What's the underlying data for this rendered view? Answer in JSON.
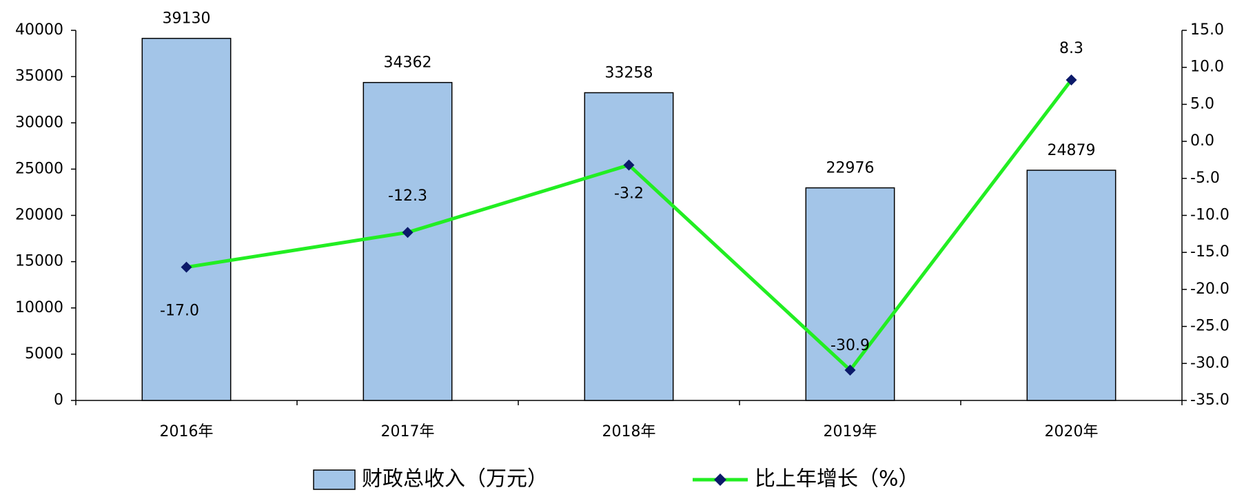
{
  "chart_data": {
    "type": "bar",
    "categories": [
      "2016年",
      "2017年",
      "2018年",
      "2019年",
      "2020年"
    ],
    "series": [
      {
        "name": "财政总收入（万元）",
        "type": "bar",
        "color": "#a3c5e8",
        "values": [
          39130,
          34362,
          33258,
          22976,
          24879
        ]
      },
      {
        "name": "比上年增长（%）",
        "type": "line",
        "axis": "y2",
        "color": "#22ee22",
        "marker_color": "#0c1a6a",
        "values": [
          -17.0,
          -12.3,
          -3.2,
          -30.9,
          8.3
        ],
        "value_labels": [
          "-17.0",
          "-12.3",
          "-3.2",
          "-30.9",
          "8.3"
        ]
      }
    ],
    "ylim": [
      0,
      40000
    ],
    "yticks": [
      0,
      5000,
      10000,
      15000,
      20000,
      25000,
      30000,
      35000,
      40000
    ],
    "y2lim": [
      -35,
      15
    ],
    "y2ticks": [
      {
        "value": -35,
        "label": "-35.0"
      },
      {
        "value": -30,
        "label": "-30.0"
      },
      {
        "value": -25,
        "label": "-25.0"
      },
      {
        "value": -20,
        "label": "-20.0"
      },
      {
        "value": -15,
        "label": "-15.0"
      },
      {
        "value": -10,
        "label": "-10.0"
      },
      {
        "value": -5,
        "label": "-5.0"
      },
      {
        "value": 0,
        "label": "0.0"
      },
      {
        "value": 5,
        "label": "5.0"
      },
      {
        "value": 10,
        "label": "10.0"
      },
      {
        "value": 15,
        "label": "15.0"
      }
    ],
    "grid": false,
    "legend": "bottom"
  }
}
